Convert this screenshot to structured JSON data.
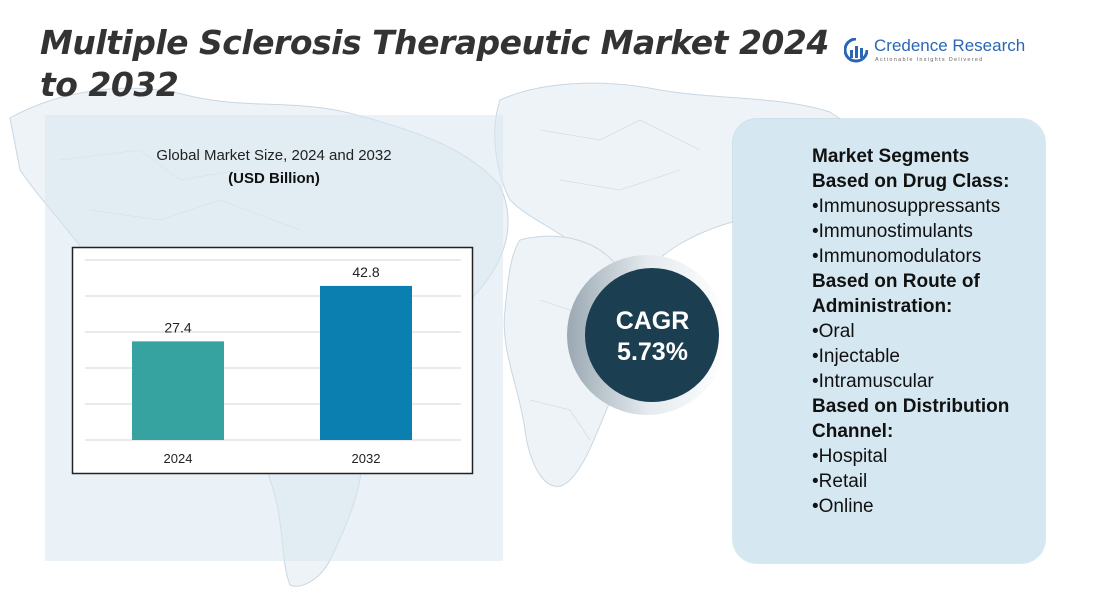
{
  "title": "Multiple Sclerosis Therapeutic Market 2024 to 2032",
  "logo": {
    "name": "Credence Research",
    "tagline": "Actionable Insights Delivered"
  },
  "chart_data": {
    "type": "bar",
    "title": "Global Market Size, 2024 and 2032",
    "subtitle": "(USD Billion)",
    "categories": [
      "2024",
      "2032"
    ],
    "values": [
      27.4,
      42.8
    ],
    "value_labels": [
      "27.4",
      "42.8"
    ],
    "colors": [
      "#36a3a0",
      "#0a7fb0"
    ],
    "ylim": [
      0,
      50
    ],
    "grid": true,
    "xlabel": "",
    "ylabel": ""
  },
  "cagr": {
    "line1": "CAGR",
    "line2": "5.73%"
  },
  "segments": [
    {
      "kind": "head",
      "text": "Market Segments"
    },
    {
      "kind": "head",
      "text": "Based on Drug Class:"
    },
    {
      "kind": "item",
      "text": "•Immunosuppressants"
    },
    {
      "kind": "item",
      "text": "•Immunostimulants"
    },
    {
      "kind": "item",
      "text": "•Immunomodulators"
    },
    {
      "kind": "head",
      "text": "Based on Route of"
    },
    {
      "kind": "head",
      "text": "Administration:"
    },
    {
      "kind": "item",
      "text": "•Oral"
    },
    {
      "kind": "item",
      "text": "•Injectable"
    },
    {
      "kind": "item",
      "text": "•Intramuscular"
    },
    {
      "kind": "head",
      "text": "Based on Distribution"
    },
    {
      "kind": "head",
      "text": "Channel:"
    },
    {
      "kind": "item",
      "text": "•Hospital"
    },
    {
      "kind": "item",
      "text": "•Retail"
    },
    {
      "kind": "item",
      "text": "•Online"
    }
  ],
  "colors": {
    "cagr_circle": "#1b3e50",
    "panel": "#d5e7f1",
    "title": "#333333",
    "logo": "#2a66b5"
  }
}
